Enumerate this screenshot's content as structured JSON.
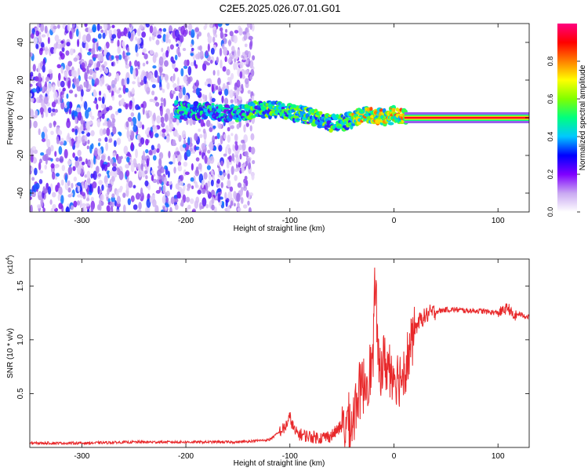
{
  "chart_data": [
    {
      "type": "heatmap",
      "title": "C2E5.2025.026.07.01.G01",
      "xlabel": "Height of straight line (km)",
      "ylabel": "Frequency (Hz)",
      "xlim": [
        -350,
        130
      ],
      "ylim": [
        -50,
        50
      ],
      "x_ticks": [
        -300,
        -200,
        -100,
        0,
        100
      ],
      "y_ticks": [
        40,
        20,
        0,
        -20,
        -40
      ],
      "colorbar": {
        "label": "Normalized spectral amplitude",
        "range": [
          0,
          1
        ],
        "ticks": [
          0.0,
          0.2,
          0.4,
          0.6,
          0.8
        ],
        "colors": [
          "#ffffff",
          "#c9a8f2",
          "#7f00ff",
          "#0000ff",
          "#00c8ff",
          "#00ff80",
          "#80ff00",
          "#ffff00",
          "#ff8000",
          "#ff0000",
          "#ff0080"
        ]
      },
      "signal_track": {
        "x": [
          -200,
          -170,
          -150,
          -130,
          -110,
          -90,
          -75,
          -60,
          -45,
          -35,
          -25,
          -15,
          -5,
          0,
          10,
          130
        ],
        "y": [
          4,
          3,
          2,
          5,
          4,
          2,
          0,
          -3,
          -2,
          0,
          2,
          1,
          0,
          2,
          0,
          0
        ]
      },
      "noise_region": {
        "x_start": -350,
        "x_end": -135,
        "y_range": [
          -50,
          50
        ]
      },
      "grid": false
    },
    {
      "type": "line",
      "title": "",
      "xlabel": "Height of straight line (km)",
      "ylabel": "SNR (10 * v/v)",
      "y_multiplier": "(x10",
      "y_multiplier_exp": "4",
      "xlim": [
        -350,
        130
      ],
      "ylim": [
        0,
        1.75
      ],
      "x_ticks": [
        -300,
        -200,
        -100,
        0,
        100
      ],
      "y_ticks": [
        0.5,
        1.0,
        1.5
      ],
      "series": [
        {
          "color": "#e8282a",
          "x": [
            -350,
            -300,
            -250,
            -200,
            -150,
            -120,
            -105,
            -100,
            -95,
            -90,
            -80,
            -70,
            -60,
            -50,
            -45,
            -40,
            -35,
            -30,
            -25,
            -20,
            -18,
            -15,
            -10,
            -5,
            0,
            5,
            10,
            15,
            20,
            25,
            30,
            35,
            40,
            50,
            60,
            70,
            80,
            90,
            100,
            105,
            110,
            115,
            120,
            130
          ],
          "y": [
            0.04,
            0.04,
            0.05,
            0.05,
            0.05,
            0.07,
            0.18,
            0.28,
            0.14,
            0.12,
            0.1,
            0.09,
            0.11,
            0.2,
            0.3,
            0.28,
            0.55,
            0.62,
            0.72,
            0.85,
            1.7,
            0.78,
            0.85,
            0.8,
            0.75,
            0.7,
            0.8,
            0.95,
            1.1,
            1.18,
            1.22,
            1.25,
            1.26,
            1.28,
            1.28,
            1.27,
            1.27,
            1.26,
            1.25,
            1.27,
            1.3,
            1.21,
            1.24,
            1.21
          ]
        }
      ],
      "grid": false
    }
  ]
}
